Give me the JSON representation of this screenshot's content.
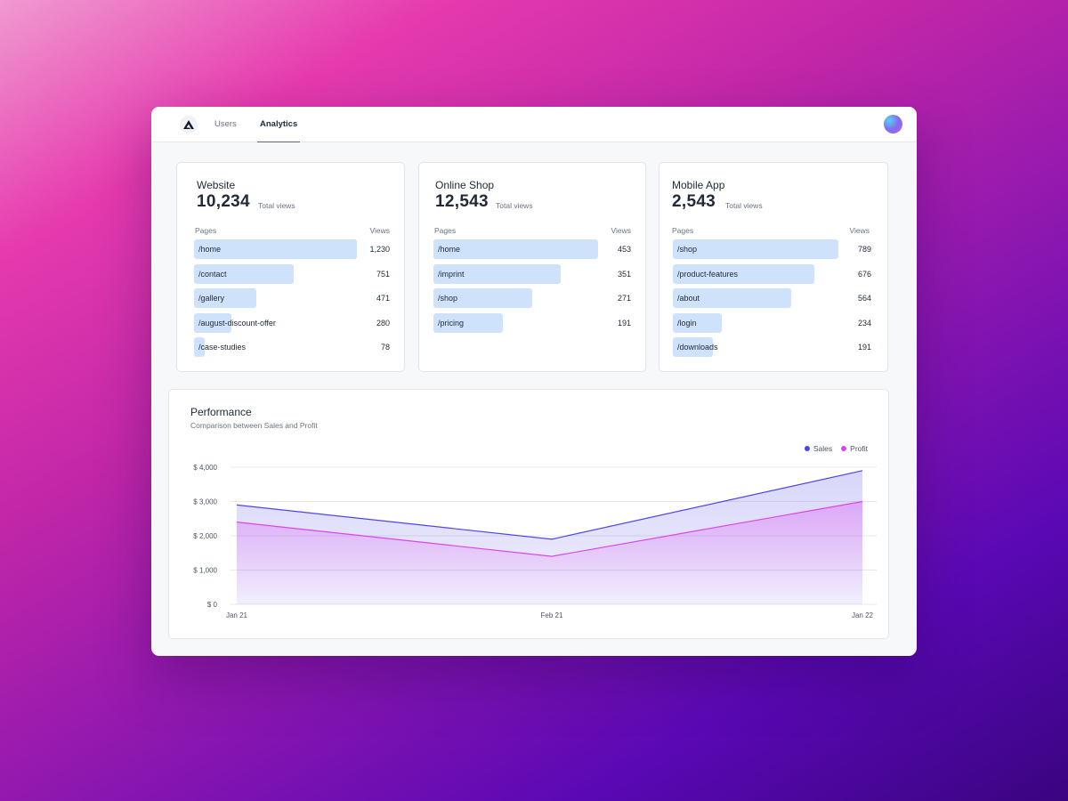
{
  "nav": {
    "tabs": [
      {
        "label": "Users"
      },
      {
        "label": "Analytics"
      }
    ],
    "active_tab": "Analytics"
  },
  "cards": [
    {
      "title": "Website",
      "total": "10,234",
      "total_label": "Total views",
      "pages_header": "Pages",
      "views_header": "Views",
      "rows": [
        {
          "page": "/home",
          "views": "1,230",
          "value": 1230
        },
        {
          "page": "/contact",
          "views": "751",
          "value": 751
        },
        {
          "page": "/gallery",
          "views": "471",
          "value": 471
        },
        {
          "page": "/august-discount-offer",
          "views": "280",
          "value": 280
        },
        {
          "page": "/case-studies",
          "views": "78",
          "value": 78
        }
      ]
    },
    {
      "title": "Online Shop",
      "total": "12,543",
      "total_label": "Total views",
      "pages_header": "Pages",
      "views_header": "Views",
      "rows": [
        {
          "page": "/home",
          "views": "453",
          "value": 453
        },
        {
          "page": "/imprint",
          "views": "351",
          "value": 351
        },
        {
          "page": "/shop",
          "views": "271",
          "value": 271
        },
        {
          "page": "/pricing",
          "views": "191",
          "value": 191
        }
      ]
    },
    {
      "title": "Mobile App",
      "total": "2,543",
      "total_label": "Total views",
      "pages_header": "Pages",
      "views_header": "Views",
      "rows": [
        {
          "page": "/shop",
          "views": "789",
          "value": 789
        },
        {
          "page": "/product-features",
          "views": "676",
          "value": 676
        },
        {
          "page": "/about",
          "views": "564",
          "value": 564
        },
        {
          "page": "/login",
          "views": "234",
          "value": 234
        },
        {
          "page": "/downloads",
          "views": "191",
          "value": 191
        }
      ]
    }
  ],
  "performance": {
    "title": "Performance",
    "subtitle": "Comparison between Sales and Profit"
  },
  "chart_data": {
    "type": "area",
    "x": [
      "Jan 21",
      "Feb 21",
      "Jan 22"
    ],
    "series": [
      {
        "name": "Sales",
        "values": [
          2900,
          1900,
          3900
        ],
        "color": "#4f46e5"
      },
      {
        "name": "Profit",
        "values": [
          2400,
          1400,
          3000
        ],
        "color": "#d946ef"
      }
    ],
    "ylim": [
      0,
      4000
    ],
    "yticks": [
      0,
      1000,
      2000,
      3000,
      4000
    ],
    "ytick_labels": [
      "$ 0",
      "$ 1,000",
      "$ 2,000",
      "$ 3,000",
      "$ 4,000"
    ],
    "grid": true,
    "legend": "top-right"
  },
  "colors": {
    "bar": "#cfe2fb",
    "sales": "#4f46e5",
    "profit": "#d946ef"
  }
}
